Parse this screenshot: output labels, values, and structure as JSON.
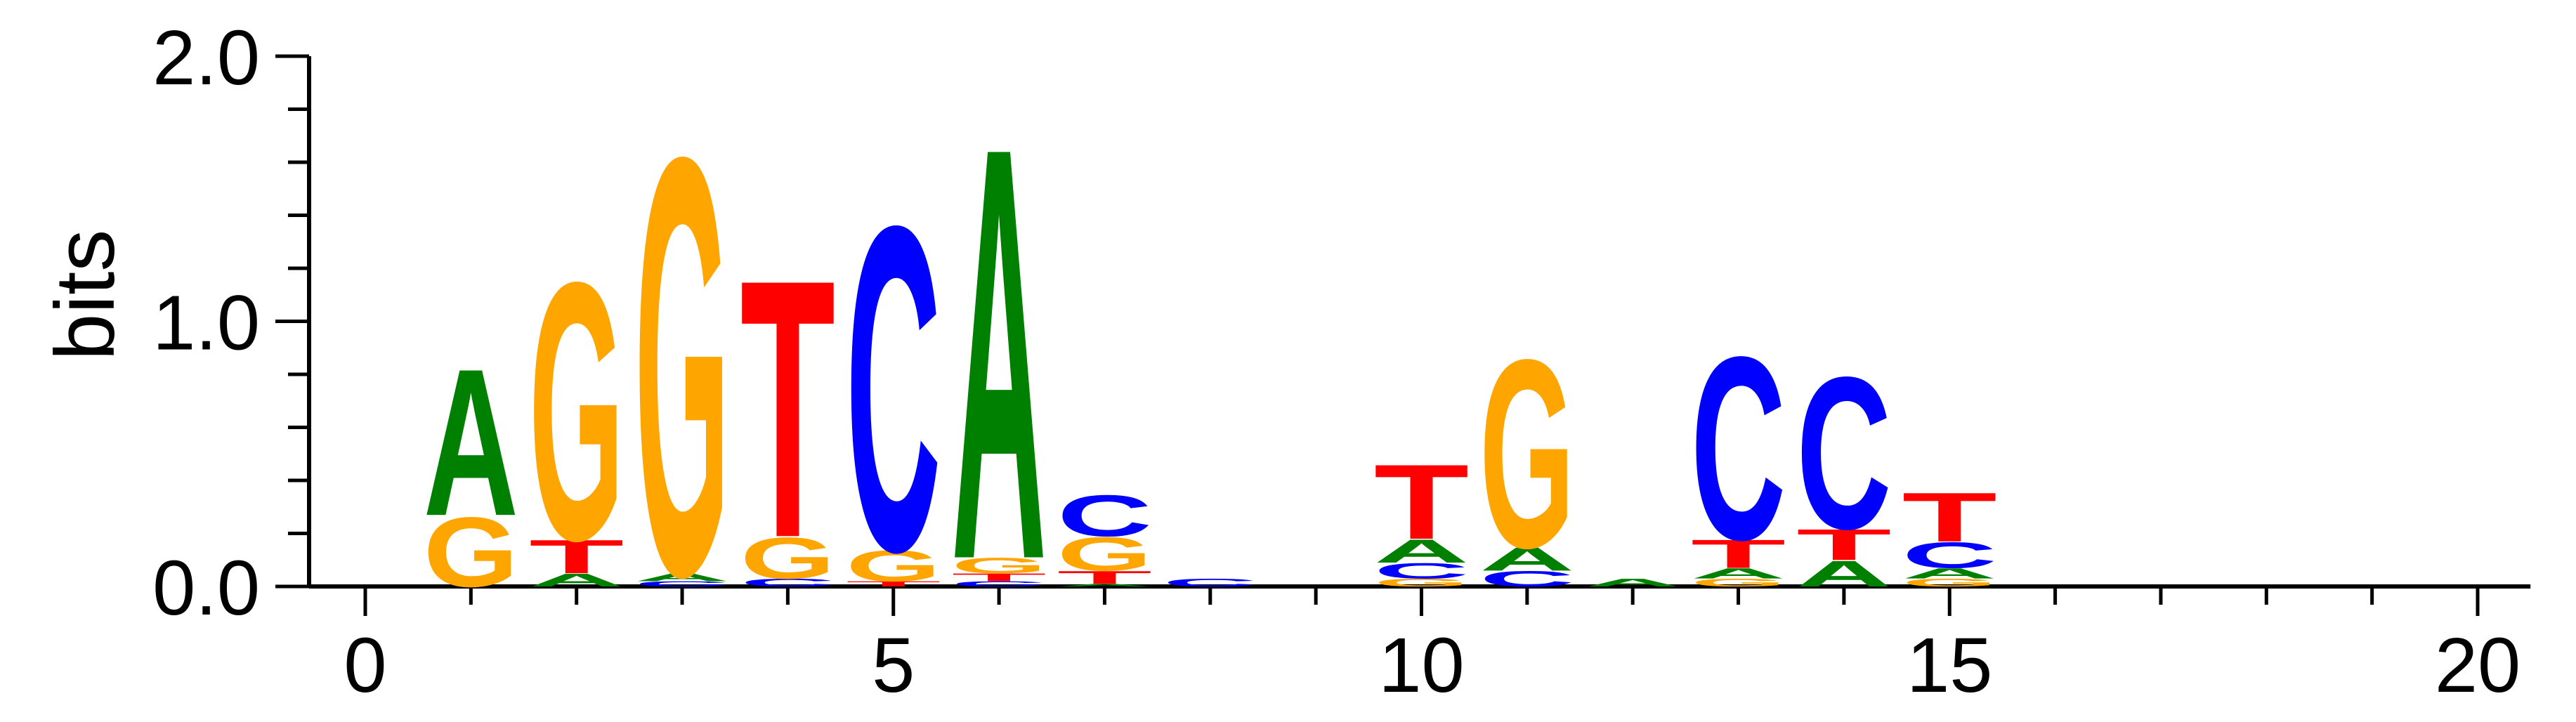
{
  "chart_data": {
    "type": "sequence-logo",
    "ylabel": "bits",
    "ylim": [
      0,
      2.0
    ],
    "xlim": [
      -0.5,
      20.5
    ],
    "y_ticks": [
      "0.0",
      "1.0",
      "2.0"
    ],
    "y_tick_values": [
      0,
      1.0,
      2.0
    ],
    "x_ticks": [
      "0",
      "5",
      "10",
      "15",
      "20"
    ],
    "x_tick_values": [
      0,
      5,
      10,
      15,
      20
    ],
    "colors": {
      "A": "#008000",
      "C": "#0000ff",
      "G": "#ffa500",
      "T": "#ff0000"
    },
    "positions": [
      {
        "x": 1,
        "stack": [
          {
            "letter": "G",
            "bits": 0.27
          },
          {
            "letter": "A",
            "bits": 0.57
          }
        ]
      },
      {
        "x": 2,
        "stack": [
          {
            "letter": "A",
            "bits": 0.05
          },
          {
            "letter": "T",
            "bits": 0.13
          },
          {
            "letter": "G",
            "bits": 1.0
          }
        ]
      },
      {
        "x": 3,
        "stack": [
          {
            "letter": "C",
            "bits": 0.02
          },
          {
            "letter": "A",
            "bits": 0.03
          },
          {
            "letter": "G",
            "bits": 1.62
          }
        ]
      },
      {
        "x": 4,
        "stack": [
          {
            "letter": "C",
            "bits": 0.03
          },
          {
            "letter": "G",
            "bits": 0.16
          },
          {
            "letter": "T",
            "bits": 1.0
          }
        ]
      },
      {
        "x": 5,
        "stack": [
          {
            "letter": "T",
            "bits": 0.02
          },
          {
            "letter": "G",
            "bits": 0.12
          },
          {
            "letter": "C",
            "bits": 1.26
          }
        ]
      },
      {
        "x": 6,
        "stack": [
          {
            "letter": "C",
            "bits": 0.02
          },
          {
            "letter": "T",
            "bits": 0.03
          },
          {
            "letter": "G",
            "bits": 0.06
          },
          {
            "letter": "A",
            "bits": 1.6
          }
        ]
      },
      {
        "x": 7,
        "stack": [
          {
            "letter": "A",
            "bits": 0.01
          },
          {
            "letter": "T",
            "bits": 0.05
          },
          {
            "letter": "G",
            "bits": 0.13
          },
          {
            "letter": "C",
            "bits": 0.16
          }
        ]
      },
      {
        "x": 8,
        "stack": [
          {
            "letter": "C",
            "bits": 0.03
          }
        ]
      },
      {
        "x": 10,
        "stack": [
          {
            "letter": "G",
            "bits": 0.03
          },
          {
            "letter": "C",
            "bits": 0.06
          },
          {
            "letter": "A",
            "bits": 0.09
          },
          {
            "letter": "T",
            "bits": 0.29
          }
        ]
      },
      {
        "x": 11,
        "stack": [
          {
            "letter": "C",
            "bits": 0.06
          },
          {
            "letter": "A",
            "bits": 0.09
          },
          {
            "letter": "G",
            "bits": 0.73
          }
        ]
      },
      {
        "x": 12,
        "stack": [
          {
            "letter": "A",
            "bits": 0.03
          }
        ]
      },
      {
        "x": 13,
        "stack": [
          {
            "letter": "G",
            "bits": 0.03
          },
          {
            "letter": "A",
            "bits": 0.04
          },
          {
            "letter": "T",
            "bits": 0.11
          },
          {
            "letter": "C",
            "bits": 0.71
          }
        ]
      },
      {
        "x": 14,
        "stack": [
          {
            "letter": "A",
            "bits": 0.1
          },
          {
            "letter": "T",
            "bits": 0.12
          },
          {
            "letter": "C",
            "bits": 0.59
          }
        ]
      },
      {
        "x": 15,
        "stack": [
          {
            "letter": "G",
            "bits": 0.03
          },
          {
            "letter": "A",
            "bits": 0.04
          },
          {
            "letter": "C",
            "bits": 0.1
          },
          {
            "letter": "T",
            "bits": 0.19
          }
        ]
      }
    ]
  }
}
